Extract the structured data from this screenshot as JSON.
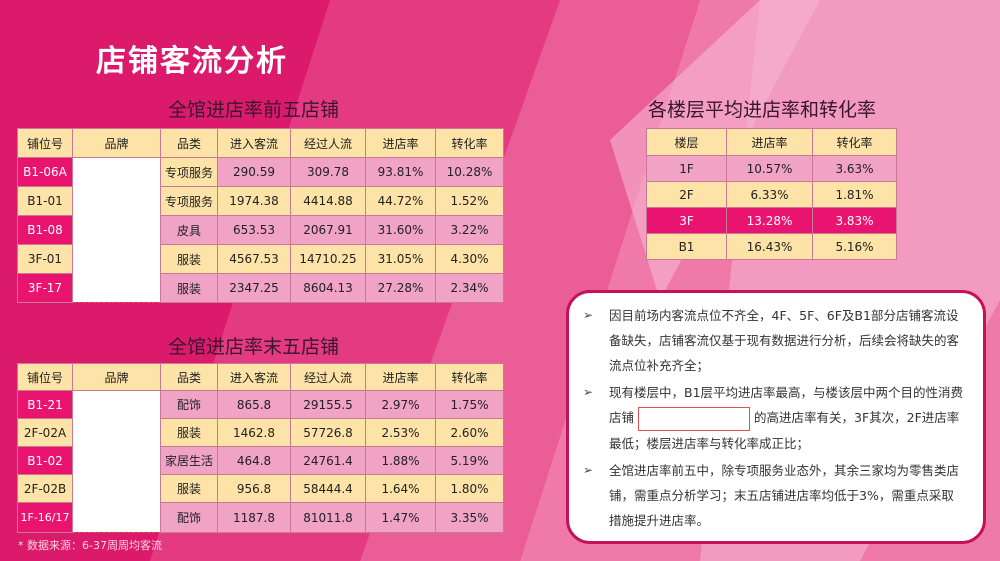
{
  "page": {
    "title": "店铺客流分析",
    "source_note": "* 数据来源：6-37周周均客流"
  },
  "top5": {
    "title": "全馆进店率前五店铺",
    "headers": [
      "铺位号",
      "品牌",
      "品类",
      "进入客流",
      "经过人流",
      "进店率",
      "转化率"
    ],
    "rows": [
      {
        "unit": "B1-06A",
        "brand": "",
        "category": "专项服务",
        "entries": "290.59",
        "passers": "309.78",
        "entry_rate": "93.81%",
        "conversion": "10.28%"
      },
      {
        "unit": "B1-01",
        "brand": "",
        "category": "专项服务",
        "entries": "1974.38",
        "passers": "4414.88",
        "entry_rate": "44.72%",
        "conversion": "1.52%"
      },
      {
        "unit": "B1-08",
        "brand": "",
        "category": "皮具",
        "entries": "653.53",
        "passers": "2067.91",
        "entry_rate": "31.60%",
        "conversion": "3.22%"
      },
      {
        "unit": "3F-01",
        "brand": "",
        "category": "服装",
        "entries": "4567.53",
        "passers": "14710.25",
        "entry_rate": "31.05%",
        "conversion": "4.30%"
      },
      {
        "unit": "3F-17",
        "brand": "",
        "category": "服装",
        "entries": "2347.25",
        "passers": "8604.13",
        "entry_rate": "27.28%",
        "conversion": "2.34%"
      }
    ]
  },
  "bottom5": {
    "title": "全馆进店率末五店铺",
    "headers": [
      "铺位号",
      "品牌",
      "品类",
      "进入客流",
      "经过人流",
      "进店率",
      "转化率"
    ],
    "rows": [
      {
        "unit": "B1-21",
        "brand": "",
        "category": "配饰",
        "entries": "865.8",
        "passers": "29155.5",
        "entry_rate": "2.97%",
        "conversion": "1.75%"
      },
      {
        "unit": "2F-02A",
        "brand": "",
        "category": "服装",
        "entries": "1462.8",
        "passers": "57726.8",
        "entry_rate": "2.53%",
        "conversion": "2.60%"
      },
      {
        "unit": "B1-02",
        "brand": "",
        "category": "家居生活",
        "entries": "464.8",
        "passers": "24761.4",
        "entry_rate": "1.88%",
        "conversion": "5.19%"
      },
      {
        "unit": "2F-02B",
        "brand": "",
        "category": "服装",
        "entries": "956.8",
        "passers": "58444.4",
        "entry_rate": "1.64%",
        "conversion": "1.80%"
      },
      {
        "unit": "1F-16/17",
        "brand": "",
        "category": "配饰",
        "entries": "1187.8",
        "passers": "81011.8",
        "entry_rate": "1.47%",
        "conversion": "3.35%"
      }
    ]
  },
  "floors": {
    "title": "各楼层平均进店率和转化率",
    "headers": [
      "楼层",
      "进店率",
      "转化率"
    ],
    "rows": [
      {
        "floor": "1F",
        "entry_rate": "10.57%",
        "conversion": "3.63%"
      },
      {
        "floor": "2F",
        "entry_rate": "6.33%",
        "conversion": "1.81%"
      },
      {
        "floor": "3F",
        "entry_rate": "13.28%",
        "conversion": "3.83%"
      },
      {
        "floor": "B1",
        "entry_rate": "16.43%",
        "conversion": "5.16%"
      }
    ]
  },
  "notes": {
    "bullet": "➢",
    "n1": "因目前场内客流点位不齐全，4F、5F、6F及B1部分店铺客流设备缺失，店铺客流仅基于现有数据进行分析，后续会将缺失的客流点位补充齐全；",
    "n2_before": "现有楼层中，B1层平均进店率最高，与楼该层中两个目的性消费店铺",
    "n2_after": "的高进店率有关，3F其次，2F进店率最低；楼层进店率与转化率成正比；",
    "n3": "全馆进店率前五中，除专项服务业态外，其余三家均为零售类店铺，需重点分析学习；末五店铺进店率均低于3%，需重点采取措施提升进店率。"
  },
  "colors": {
    "background": "#dc1a6b",
    "header_fill": "#fde3a7",
    "row_pink": "#f0a3c5",
    "hot": "#e9146f"
  }
}
